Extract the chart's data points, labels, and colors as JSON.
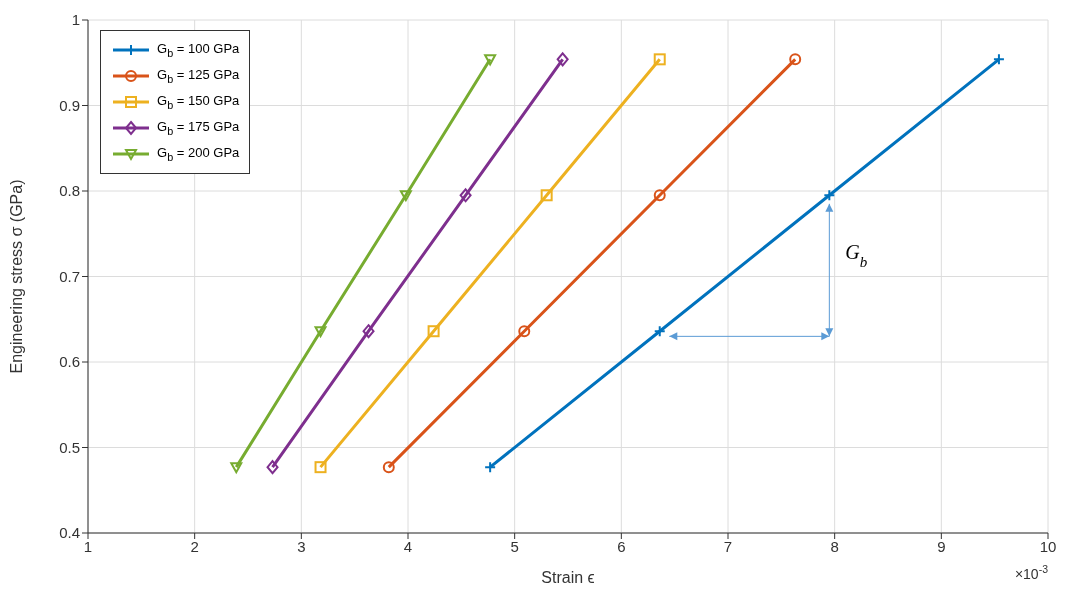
{
  "chart_data": {
    "type": "line",
    "xlabel": "Strain ϵ",
    "ylabel": "Engineering stress σ (GPa)",
    "xlim": [
      1,
      10
    ],
    "ylim": [
      0.4,
      1
    ],
    "xticks": [
      1,
      2,
      3,
      4,
      5,
      6,
      7,
      8,
      9,
      10
    ],
    "yticks": [
      0.4,
      0.5,
      0.6,
      0.7,
      0.8,
      0.9,
      1
    ],
    "grid": true,
    "legend": "top left",
    "series": [
      {
        "name": "G$_{b}$ = 100 GPa",
        "color": "#0072bd",
        "marker": "cross",
        "x": [
          4.77,
          6.36,
          7.95,
          9.54
        ],
        "values": [
          0.477,
          0.636,
          0.795,
          0.954
        ]
      },
      {
        "name": "G$_{b}$ = 125 GPa",
        "color": "#d95319",
        "marker": "circle",
        "x": [
          3.82,
          5.09,
          6.36,
          7.63
        ],
        "values": [
          0.477,
          0.636,
          0.795,
          0.954
        ]
      },
      {
        "name": "G$_{b}$ = 150 GPa",
        "color": "#edb120",
        "marker": "square",
        "x": [
          3.18,
          4.24,
          5.3,
          6.36
        ],
        "values": [
          0.477,
          0.636,
          0.795,
          0.954
        ]
      },
      {
        "name": "G$_{b}$ = 175 GPa",
        "color": "#7e2f8e",
        "marker": "diamond",
        "x": [
          2.73,
          3.63,
          4.54,
          5.45
        ],
        "values": [
          0.477,
          0.636,
          0.795,
          0.954
        ]
      },
      {
        "name": "G$_{b}$ = 200 GPa",
        "color": "#77ac30",
        "marker": "triangle",
        "x": [
          2.39,
          3.18,
          3.98,
          4.77
        ],
        "values": [
          0.477,
          0.636,
          0.795,
          0.954
        ]
      }
    ],
    "annotations": [
      "G$_{b}$",
      "×10$^{-3}$"
    ]
  }
}
